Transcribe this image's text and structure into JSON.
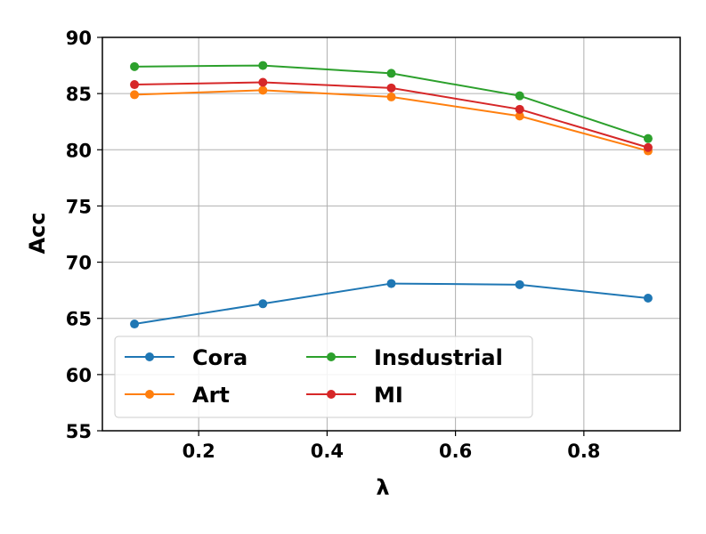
{
  "chart_data": {
    "type": "line",
    "title": "",
    "xlabel": "λ",
    "ylabel": "Acc",
    "x": [
      0.1,
      0.3,
      0.5,
      0.7,
      0.9
    ],
    "xlim": [
      0.05,
      0.95
    ],
    "ylim": [
      55,
      90
    ],
    "xticks": [
      "0.2",
      "0.4",
      "0.6",
      "0.8"
    ],
    "yticks": [
      "55",
      "60",
      "65",
      "70",
      "75",
      "80",
      "85",
      "90"
    ],
    "grid": true,
    "legend_position": "lower-left",
    "legend_columns": 2,
    "series": [
      {
        "name": "Cora",
        "color": "#1f77b4",
        "values": [
          64.5,
          66.3,
          68.1,
          68.0,
          66.8
        ]
      },
      {
        "name": "Art",
        "color": "#ff7f0e",
        "values": [
          84.9,
          85.3,
          84.7,
          83.0,
          79.9
        ]
      },
      {
        "name": "Insdustrial",
        "color": "#2ca02c",
        "values": [
          87.4,
          87.5,
          86.8,
          84.8,
          81.0
        ]
      },
      {
        "name": "MI",
        "color": "#d62728",
        "values": [
          85.8,
          86.0,
          85.5,
          83.6,
          80.2
        ]
      }
    ]
  }
}
